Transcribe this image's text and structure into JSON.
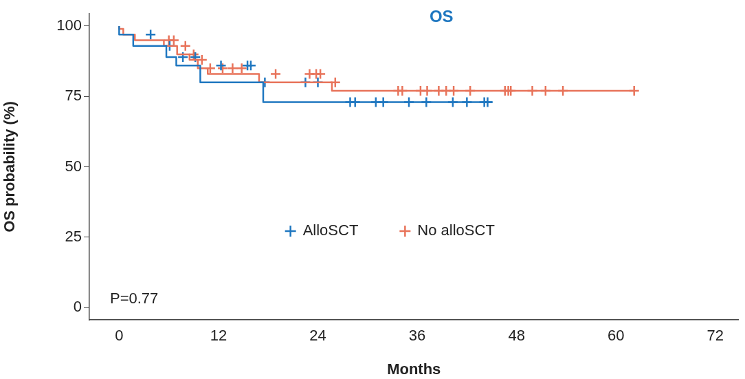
{
  "chart_data": {
    "type": "step",
    "title": "OS",
    "xlabel": "Months",
    "ylabel": "OS probability (%)",
    "xlim": [
      -3.6,
      74.8
    ],
    "xticks": [
      0,
      12,
      24,
      36,
      48,
      60,
      72
    ],
    "ylim": [
      -4.4,
      104.4
    ],
    "yticks": [
      0,
      25,
      50,
      75,
      100
    ],
    "grid": false,
    "legend": "center",
    "annotations": [
      "P=0.77"
    ],
    "series": [
      {
        "name": "AlloSCT",
        "color": "#1f77c0",
        "x": [
          0,
          1.7,
          5.7,
          6.9,
          9.8,
          17.4,
          27.3,
          45.1
        ],
        "values": [
          100,
          97,
          93,
          89,
          86,
          80,
          73,
          73
        ]
      },
      {
        "name": "No alloSCT",
        "color": "#e8735a",
        "x": [
          0,
          0.5,
          1.9,
          5.4,
          7,
          8.5,
          9.5,
          10.7,
          16.9,
          25.7,
          30.1,
          62.2
        ],
        "values": [
          100,
          99,
          97,
          95,
          93,
          90,
          88,
          85,
          83,
          80,
          77,
          77
        ]
      },
      {
        "type": "scatter",
        "marker": "cross",
        "color": "#1f77c0",
        "x": [
          3.8,
          6.1,
          7.7,
          9.2,
          12.3,
          15.5,
          15.9,
          17.6,
          22.5,
          24,
          27.9,
          28.5,
          31,
          31.9,
          35,
          37.1,
          40.3,
          42,
          44.1,
          44.5
        ],
        "values": [
          97,
          93,
          89,
          89,
          86,
          86,
          86,
          80,
          80,
          80,
          73,
          73,
          73,
          73,
          73,
          73,
          73,
          73,
          73,
          73
        ]
      },
      {
        "type": "scatter",
        "marker": "cross",
        "color": "#e8735a",
        "x": [
          6,
          6.6,
          8,
          9,
          10,
          11,
          12.5,
          13.7,
          14.8,
          18.9,
          23,
          23.8,
          24.3,
          26.1,
          33.7,
          34.2,
          36.4,
          37.2,
          38.6,
          39.5,
          40.4,
          42.4,
          46.6,
          47,
          47.3,
          49.9,
          51.5,
          53.6,
          62.2
        ],
        "values": [
          95,
          95,
          93,
          90,
          88,
          85,
          85,
          85,
          85,
          83,
          83,
          83,
          83,
          80,
          77,
          77,
          77,
          77,
          77,
          77,
          77,
          77,
          77,
          77,
          77,
          77,
          77,
          77,
          77
        ]
      }
    ]
  }
}
